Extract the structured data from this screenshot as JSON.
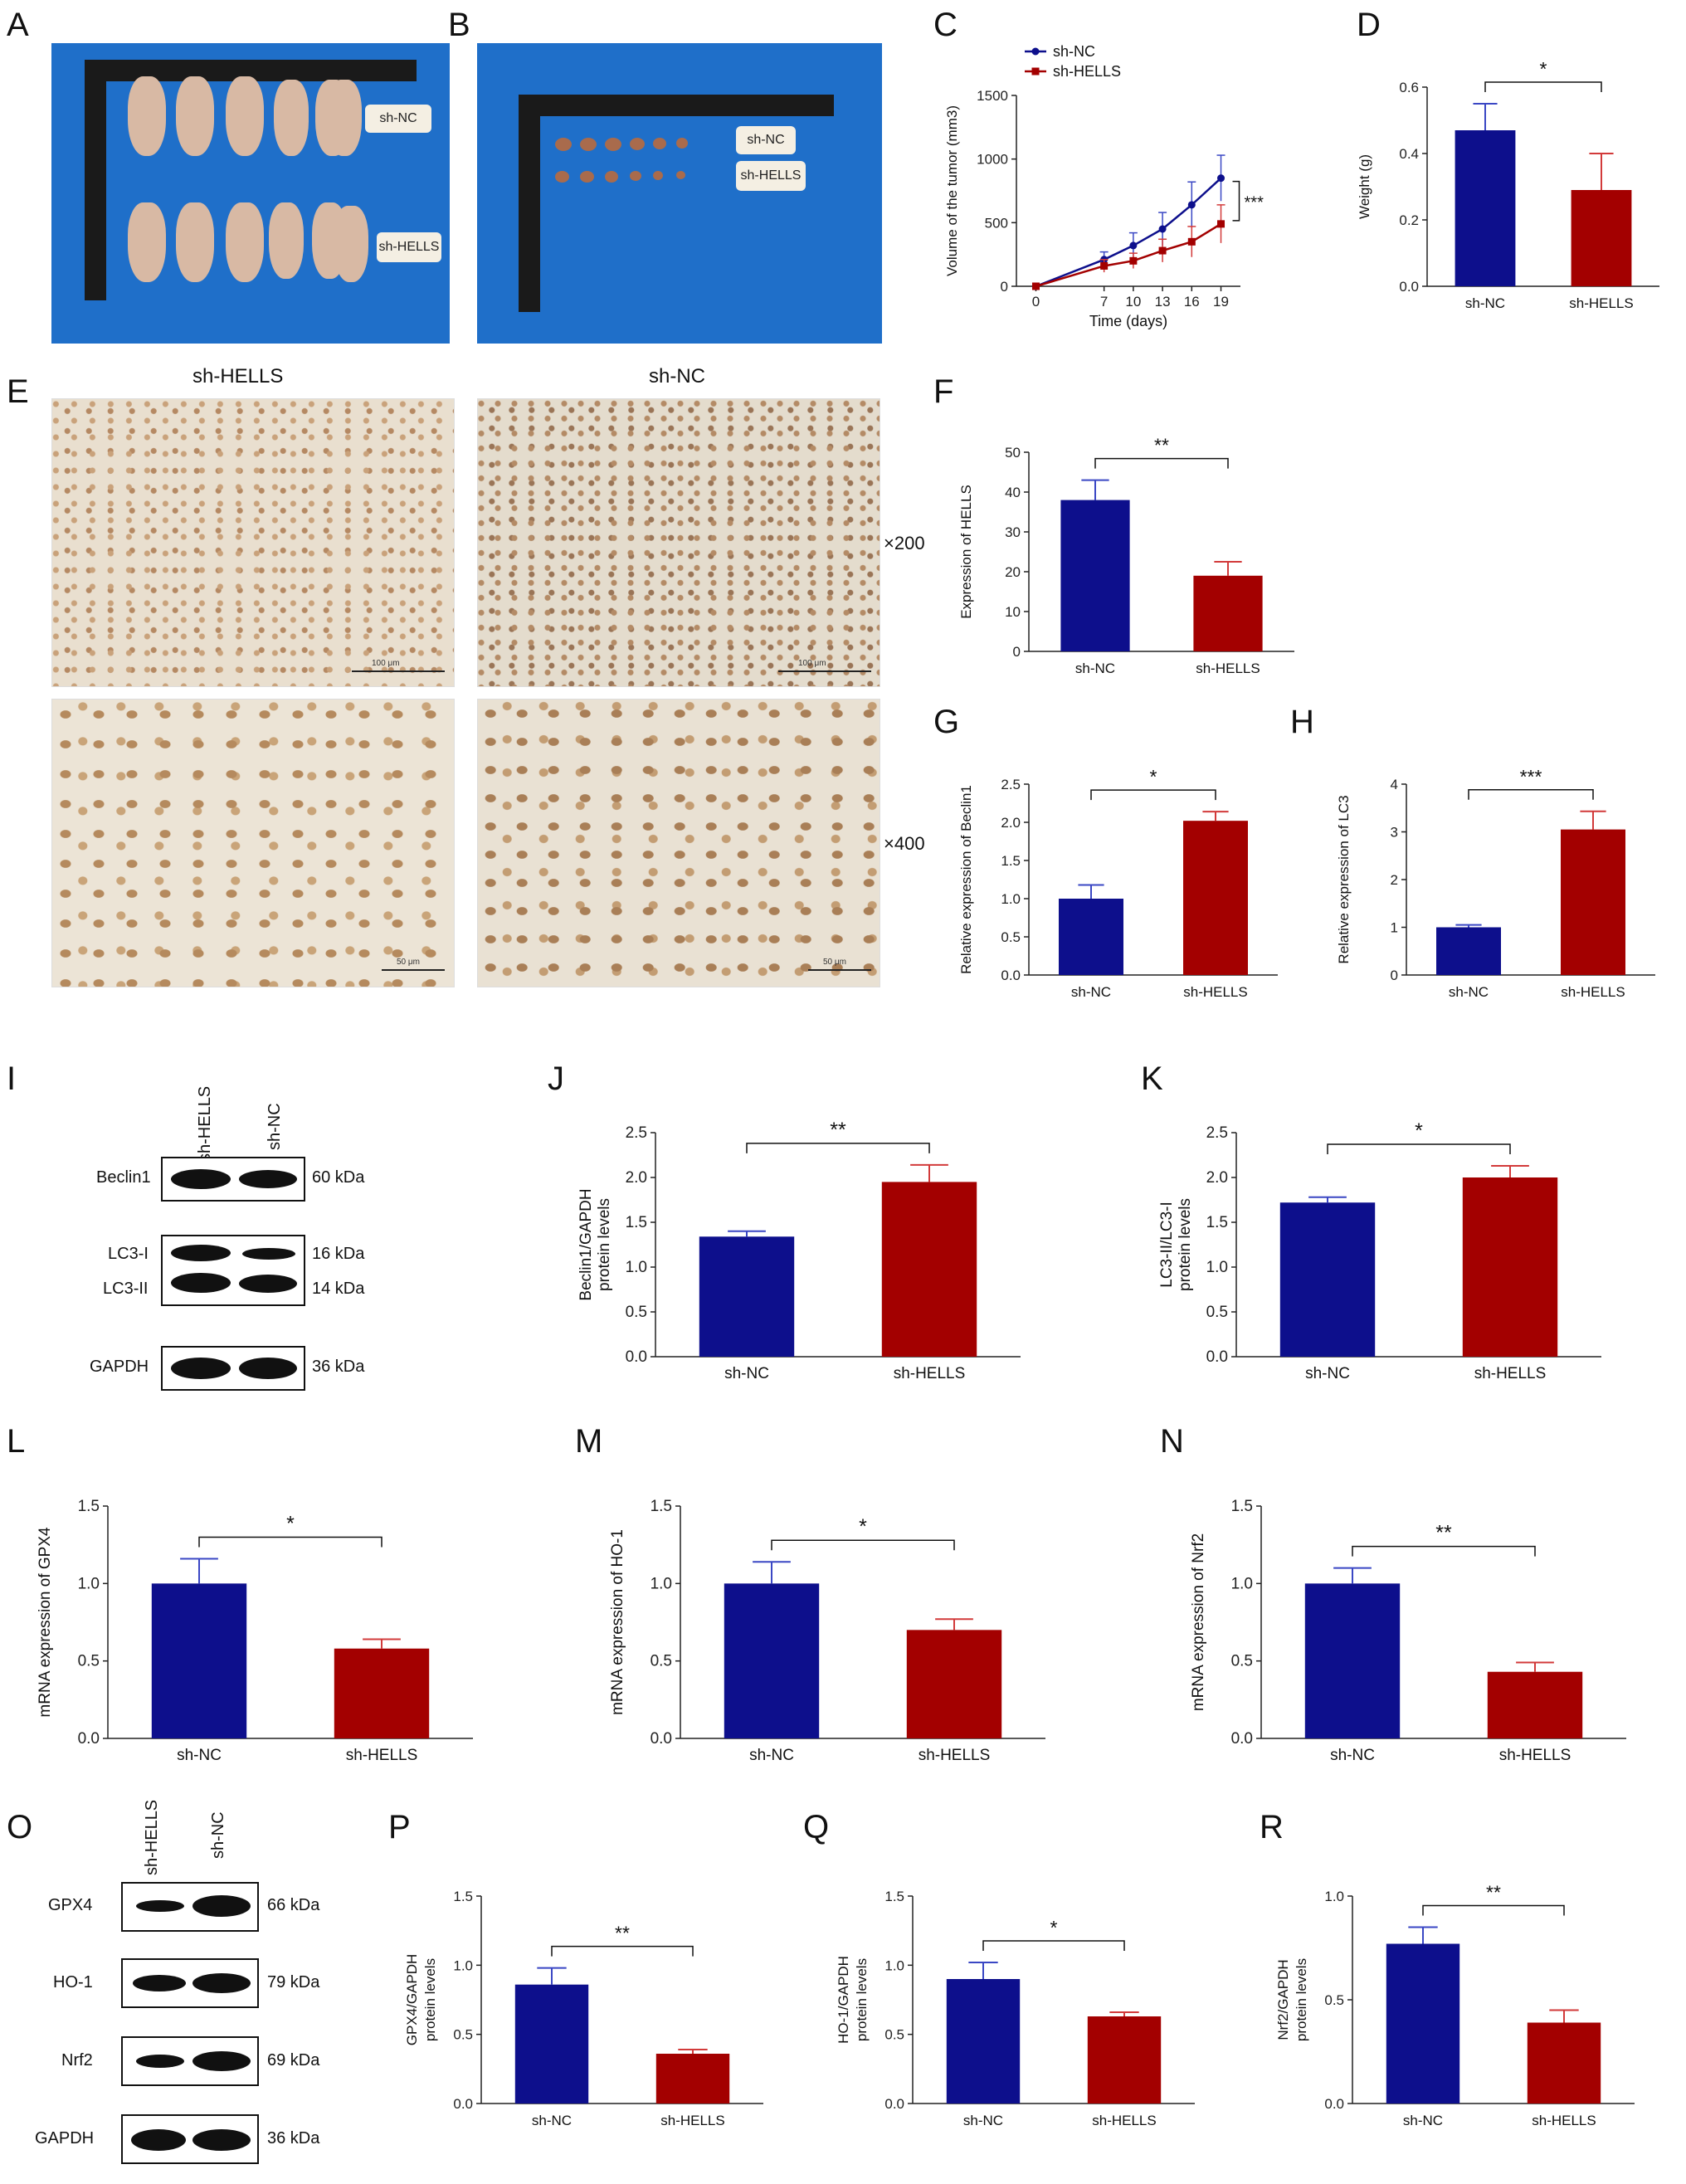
{
  "panels": {
    "A": "A",
    "B": "B",
    "C": "C",
    "D": "D",
    "E": "E",
    "F": "F",
    "G": "G",
    "H": "H",
    "I": "I",
    "J": "J",
    "K": "K",
    "L": "L",
    "M": "M",
    "N": "N",
    "O": "O",
    "P": "P",
    "Q": "Q",
    "R": "R"
  },
  "photo_tags": {
    "nc": "sh-NC",
    "hells": "sh-HELLS"
  },
  "ihc": {
    "col1": "sh-HELLS",
    "col2": "sh-NC",
    "mag1": "×200",
    "mag2": "×400",
    "scale1": "100 μm",
    "scale2": "50 μm"
  },
  "blot_I": {
    "lanes": [
      "sh-HELLS",
      "sh-NC"
    ],
    "rows": [
      {
        "label": "Beclin1",
        "kda": "60 kDa"
      },
      {
        "label": "LC3-I",
        "kda": "16 kDa"
      },
      {
        "label": "LC3-II",
        "kda": "14 kDa"
      },
      {
        "label": "GAPDH",
        "kda": "36 kDa"
      }
    ]
  },
  "blot_O": {
    "lanes": [
      "sh-HELLS",
      "sh-NC"
    ],
    "rows": [
      {
        "label": "GPX4",
        "kda": "66 kDa"
      },
      {
        "label": "HO-1",
        "kda": "79 kDa"
      },
      {
        "label": "Nrf2",
        "kda": "69 kDa"
      },
      {
        "label": "GAPDH",
        "kda": "36 kDa"
      }
    ]
  },
  "colors": {
    "nc": "#0d0f8c",
    "hells": "#a30000",
    "err_nc": "#3a47c4",
    "err_hells": "#d23a3a"
  },
  "chart_data": [
    {
      "id": "C",
      "type": "line",
      "x": [
        0,
        7,
        10,
        13,
        16,
        19
      ],
      "xlabel": "Time (days)",
      "ylabel": "Volume of the tumor (mm3)",
      "ylim": [
        0,
        1500
      ],
      "yticks": [
        0,
        500,
        1000,
        1500
      ],
      "series": [
        {
          "name": "sh-NC",
          "values": [
            0,
            210,
            320,
            450,
            640,
            850
          ],
          "err": [
            0,
            60,
            100,
            130,
            180,
            180
          ]
        },
        {
          "name": "sh-HELLS",
          "values": [
            0,
            160,
            200,
            280,
            350,
            490
          ],
          "err": [
            0,
            50,
            60,
            90,
            120,
            150
          ]
        }
      ],
      "annotation": "***"
    },
    {
      "id": "D",
      "type": "bar",
      "categories": [
        "sh-NC",
        "sh-HELLS"
      ],
      "values": [
        0.47,
        0.29
      ],
      "err": [
        0.08,
        0.11
      ],
      "ylabel": "Weight (g)",
      "ylim": [
        0,
        0.6
      ],
      "yticks": [
        0.0,
        0.2,
        0.4,
        0.6
      ],
      "decimals": 1,
      "sig": "*"
    },
    {
      "id": "F",
      "type": "bar",
      "categories": [
        "sh-NC",
        "sh-HELLS"
      ],
      "values": [
        38,
        19
      ],
      "err": [
        5,
        3.5
      ],
      "ylabel": "Expression of HELLS",
      "ylim": [
        0,
        50
      ],
      "yticks": [
        0,
        10,
        20,
        30,
        40,
        50
      ],
      "decimals": 0,
      "sig": "**"
    },
    {
      "id": "G",
      "type": "bar",
      "categories": [
        "sh-NC",
        "sh-HELLS"
      ],
      "values": [
        1.0,
        2.02
      ],
      "err": [
        0.18,
        0.12
      ],
      "ylabel": "Relative expression of Beclin1",
      "ylim": [
        0,
        2.5
      ],
      "yticks": [
        0.0,
        0.5,
        1.0,
        1.5,
        2.0,
        2.5
      ],
      "decimals": 1,
      "sig": "*"
    },
    {
      "id": "H",
      "type": "bar",
      "categories": [
        "sh-NC",
        "sh-HELLS"
      ],
      "values": [
        1.0,
        3.05
      ],
      "err": [
        0.05,
        0.38
      ],
      "ylabel": "Relative expression of LC3",
      "ylim": [
        0,
        4
      ],
      "yticks": [
        0,
        1,
        2,
        3,
        4
      ],
      "decimals": 0,
      "sig": "***"
    },
    {
      "id": "J",
      "type": "bar",
      "categories": [
        "sh-NC",
        "sh-HELLS"
      ],
      "values": [
        1.34,
        1.95
      ],
      "err": [
        0.06,
        0.19
      ],
      "ylabel": "Beclin1/GAPDH|protein levels",
      "ylim": [
        0,
        2.5
      ],
      "yticks": [
        0.0,
        0.5,
        1.0,
        1.5,
        2.0,
        2.5
      ],
      "decimals": 1,
      "sig": "**"
    },
    {
      "id": "K",
      "type": "bar",
      "categories": [
        "sh-NC",
        "sh-HELLS"
      ],
      "values": [
        1.72,
        2.0
      ],
      "err": [
        0.06,
        0.13
      ],
      "ylabel": "LC3-II/LC3-I|protein levels",
      "ylim": [
        0,
        2.5
      ],
      "yticks": [
        0.0,
        0.5,
        1.0,
        1.5,
        2.0,
        2.5
      ],
      "decimals": 1,
      "sig": "*"
    },
    {
      "id": "L",
      "type": "bar",
      "categories": [
        "sh-NC",
        "sh-HELLS"
      ],
      "values": [
        1.0,
        0.58
      ],
      "err": [
        0.16,
        0.06
      ],
      "ylabel": "mRNA expression of GPX4",
      "ylim": [
        0,
        1.5
      ],
      "yticks": [
        0.0,
        0.5,
        1.0,
        1.5
      ],
      "decimals": 1,
      "sig": "*"
    },
    {
      "id": "M",
      "type": "bar",
      "categories": [
        "sh-NC",
        "sh-HELLS"
      ],
      "values": [
        1.0,
        0.7
      ],
      "err": [
        0.14,
        0.07
      ],
      "ylabel": "mRNA expression of HO-1",
      "ylim": [
        0,
        1.5
      ],
      "yticks": [
        0.0,
        0.5,
        1.0,
        1.5
      ],
      "decimals": 1,
      "sig": "*"
    },
    {
      "id": "N",
      "type": "bar",
      "categories": [
        "sh-NC",
        "sh-HELLS"
      ],
      "values": [
        1.0,
        0.43
      ],
      "err": [
        0.1,
        0.06
      ],
      "ylabel": "mRNA expression of Nrf2",
      "ylim": [
        0,
        1.5
      ],
      "yticks": [
        0.0,
        0.5,
        1.0,
        1.5
      ],
      "decimals": 1,
      "sig": "**"
    },
    {
      "id": "P",
      "type": "bar",
      "categories": [
        "sh-NC",
        "sh-HELLS"
      ],
      "values": [
        0.86,
        0.36
      ],
      "err": [
        0.12,
        0.03
      ],
      "ylabel": "GPX4/GAPDH|protein levels",
      "ylim": [
        0,
        1.5
      ],
      "yticks": [
        0.0,
        0.5,
        1.0,
        1.5
      ],
      "decimals": 1,
      "sig": "**"
    },
    {
      "id": "Q",
      "type": "bar",
      "categories": [
        "sh-NC",
        "sh-HELLS"
      ],
      "values": [
        0.9,
        0.63
      ],
      "err": [
        0.12,
        0.03
      ],
      "ylabel": "HO-1/GAPDH|protein levels",
      "ylim": [
        0,
        1.5
      ],
      "yticks": [
        0.0,
        0.5,
        1.0,
        1.5
      ],
      "decimals": 1,
      "sig": "*"
    },
    {
      "id": "R",
      "type": "bar",
      "categories": [
        "sh-NC",
        "sh-HELLS"
      ],
      "values": [
        0.77,
        0.39
      ],
      "err": [
        0.08,
        0.06
      ],
      "ylabel": "Nrf2/GAPDH|protein levels",
      "ylim": [
        0,
        1.0
      ],
      "yticks": [
        0.0,
        0.5,
        1.0
      ],
      "decimals": 1,
      "sig": "**"
    }
  ]
}
